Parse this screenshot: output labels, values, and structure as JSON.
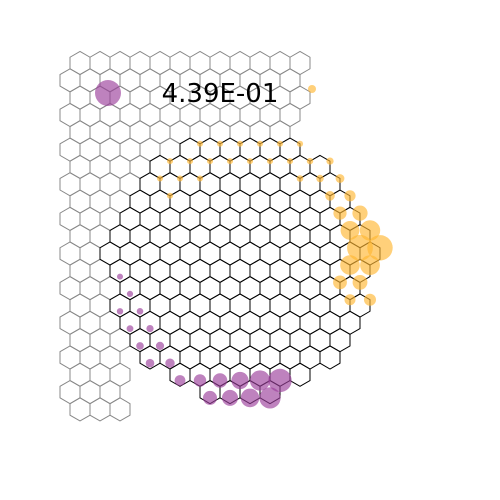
{
  "value_label": "4.39E-01",
  "colors": {
    "background": "#ffffff",
    "inactive_hex": "#888888",
    "active_hex": "#000000",
    "purple_marker": "#9b3f9b",
    "orange_marker": "#ffb733"
  }
}
